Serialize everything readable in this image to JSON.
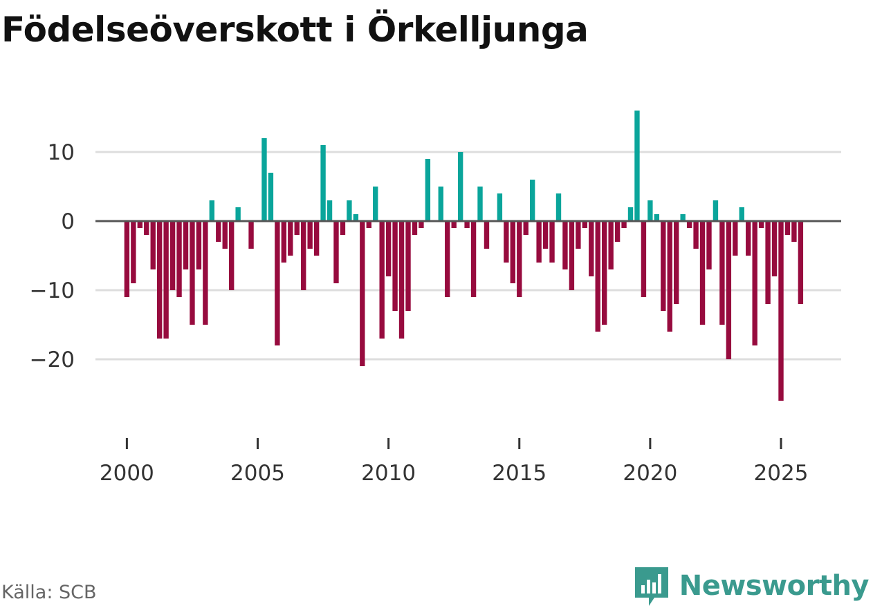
{
  "title": "Födelseöverskott i Örkelljunga",
  "source": "Källa: SCB",
  "brand": {
    "name": "Newsworthy",
    "icon": "newsworthy-logo-icon"
  },
  "colors": {
    "positive": "#0aa59b",
    "negative": "#970b3e",
    "grid": "#dddddd",
    "zero_line": "#555555",
    "axis_text": "#333333",
    "brand": "#3a9a8e"
  },
  "chart_data": {
    "type": "bar",
    "title": "Födelseöverskott i Örkelljunga",
    "xlabel": "",
    "ylabel": "",
    "ylim": [
      -30,
      17
    ],
    "xlim": [
      1998.8,
      2027.3
    ],
    "y_ticks": [
      10,
      0,
      -10,
      -20
    ],
    "y_tick_labels": [
      "10",
      "0",
      "−10",
      "−20"
    ],
    "x_ticks": [
      2000,
      2005,
      2010,
      2015,
      2020,
      2025
    ],
    "x_tick_labels": [
      "2000",
      "2005",
      "2010",
      "2015",
      "2020",
      "2025"
    ],
    "grid": true,
    "period": "monthly",
    "start": 2000.0,
    "step": 0.25,
    "values": [
      -11,
      -9,
      -1,
      -2,
      -7,
      -17,
      -17,
      -10,
      -11,
      -7,
      -15,
      -7,
      -15,
      3,
      -3,
      -4,
      -10,
      2,
      0,
      -4,
      0,
      12,
      7,
      -18,
      -6,
      -5,
      -2,
      -10,
      -4,
      -5,
      11,
      3,
      -9,
      -2,
      3,
      1,
      -21,
      -1,
      5,
      -17,
      -8,
      -13,
      -17,
      -13,
      -2,
      -1,
      9,
      0,
      5,
      -11,
      -1,
      10,
      -1,
      -11,
      5,
      -4,
      0,
      4,
      -6,
      -9,
      -11,
      -2,
      6,
      -6,
      -4,
      -6,
      4,
      -7,
      -10,
      -4,
      -1,
      -8,
      -16,
      -15,
      -7,
      -3,
      -1,
      2,
      16,
      -11,
      3,
      1,
      -13,
      -16,
      -12,
      1,
      -1,
      -4,
      -15,
      -7,
      3,
      -15,
      -20,
      -5,
      2,
      -5,
      -18,
      -1,
      -12,
      -8,
      -26,
      -2,
      -3,
      -12
    ]
  }
}
